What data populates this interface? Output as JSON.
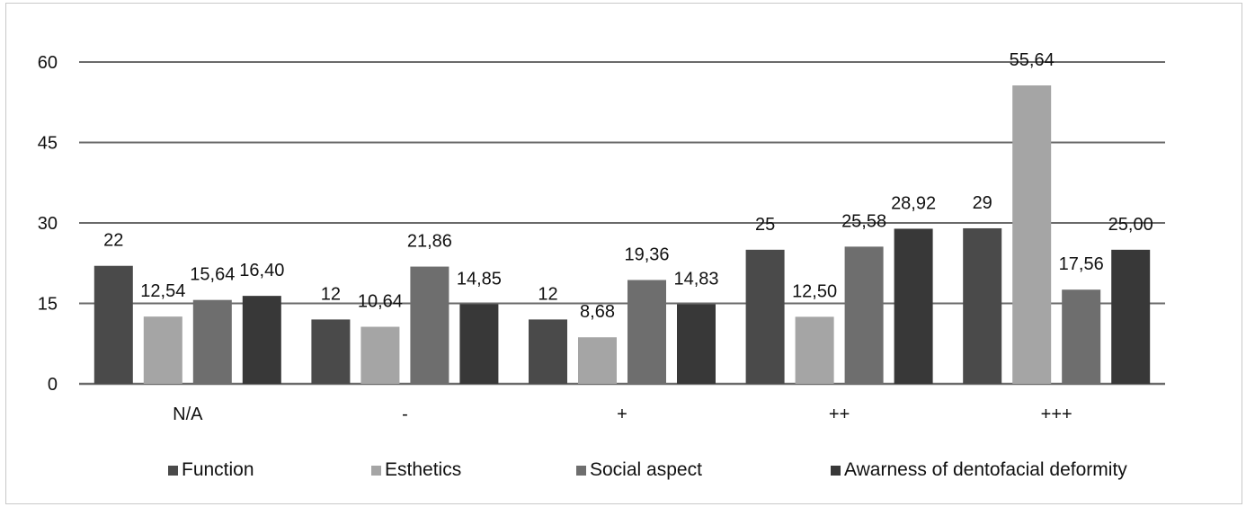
{
  "chart_data": {
    "type": "bar",
    "categories": [
      "N/A",
      "-",
      "+",
      "++",
      "+++"
    ],
    "series": [
      {
        "name": "Function",
        "color": "#4a4a4a",
        "values": [
          22,
          12,
          12,
          25,
          29
        ],
        "labels": [
          "22",
          "12",
          "12",
          "25",
          "29"
        ]
      },
      {
        "name": "Esthetics",
        "color": "#a5a5a5",
        "values": [
          12.54,
          10.64,
          8.68,
          12.5,
          55.64
        ],
        "labels": [
          "12,54",
          "10,64",
          "8,68",
          "12,50",
          "55,64"
        ]
      },
      {
        "name": "Social aspect",
        "color": "#6e6e6e",
        "values": [
          15.64,
          21.86,
          19.36,
          25.58,
          17.56
        ],
        "labels": [
          "15,64",
          "21,86",
          "19,36",
          "25,58",
          "17,56"
        ]
      },
      {
        "name": "Awarness of dentofacial deformity",
        "color": "#383838",
        "values": [
          16.4,
          14.85,
          14.83,
          28.92,
          25.0
        ],
        "labels": [
          "16,40",
          "14,85",
          "14,83",
          "28,92",
          "25,00"
        ]
      }
    ],
    "y_ticks": [
      0,
      15,
      30,
      45,
      60
    ],
    "ylim": [
      0,
      60
    ],
    "grid": true,
    "legend_position": "bottom",
    "title": "",
    "xlabel": "",
    "ylabel": ""
  }
}
